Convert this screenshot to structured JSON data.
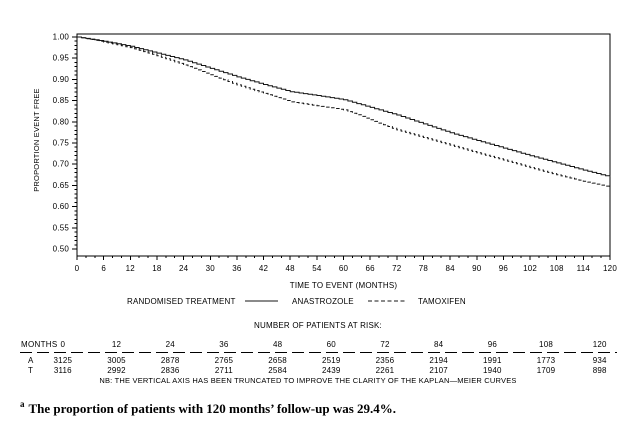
{
  "chart_data": {
    "type": "line",
    "subtype": "kaplan-meier",
    "title": "",
    "xlabel": "TIME TO EVENT (MONTHS)",
    "ylabel": "PROPORTION EVENT FREE",
    "xlim": [
      0,
      120
    ],
    "ylim": [
      0.5,
      1.0
    ],
    "xtick_step": 6,
    "xtick_minor_step": 2,
    "ytick_step": 0.05,
    "ytick_minor_step": 0.01,
    "grid": false,
    "legend_position": "below",
    "legend_title": "RANDOMISED TREATMENT",
    "x": [
      0,
      6,
      12,
      18,
      24,
      30,
      36,
      42,
      48,
      54,
      60,
      66,
      72,
      78,
      84,
      90,
      96,
      102,
      108,
      114,
      120
    ],
    "series": [
      {
        "name": "ANASTROZOLE",
        "line_style": "solid",
        "values": [
          1.0,
          0.99,
          0.978,
          0.962,
          0.946,
          0.926,
          0.906,
          0.888,
          0.871,
          0.862,
          0.852,
          0.834,
          0.816,
          0.795,
          0.774,
          0.756,
          0.738,
          0.72,
          0.703,
          0.686,
          0.67
        ]
      },
      {
        "name": "TAMOXIFEN",
        "line_style": "dashed",
        "values": [
          1.0,
          0.988,
          0.975,
          0.956,
          0.934,
          0.911,
          0.887,
          0.867,
          0.847,
          0.838,
          0.828,
          0.805,
          0.781,
          0.763,
          0.745,
          0.727,
          0.71,
          0.692,
          0.675,
          0.66,
          0.646
        ]
      }
    ]
  },
  "risk_table": {
    "title": "NUMBER OF PATIENTS AT RISK:",
    "months_label": "MONTHS",
    "months": [
      "0",
      "12",
      "24",
      "36",
      "48",
      "60",
      "72",
      "84",
      "96",
      "108",
      "120"
    ],
    "rows": [
      {
        "label": "A",
        "values": [
          "3125",
          "3005",
          "2878",
          "2765",
          "2658",
          "2519",
          "2356",
          "2194",
          "1991",
          "1773",
          "934"
        ]
      },
      {
        "label": "T",
        "values": [
          "3116",
          "2992",
          "2836",
          "2711",
          "2584",
          "2439",
          "2261",
          "2107",
          "1940",
          "1709",
          "898"
        ]
      }
    ],
    "note": "NB: THE VERTICAL AXIS HAS BEEN TRUNCATED TO IMPROVE THE CLARITY OF THE KAPLAN—MEIER CURVES"
  },
  "footnote": {
    "marker": "a",
    "text": "The proportion of patients with 120 months’ follow-up was 29.4%."
  },
  "colors": {
    "ink": "#000000",
    "background": "#ffffff",
    "curve": "#141414"
  }
}
